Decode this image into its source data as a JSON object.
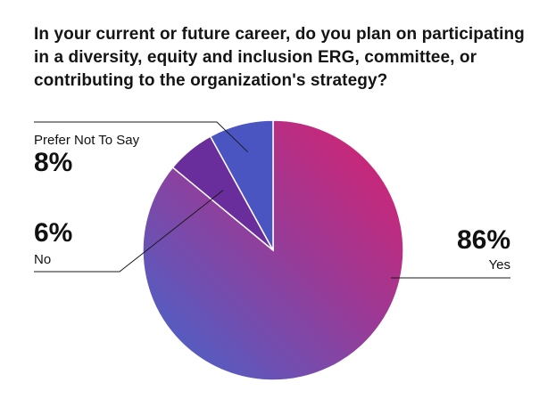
{
  "chart_data": {
    "type": "pie",
    "title": "In your current or future career, do you plan on participating in a diversity, equity and inclusion ERG, committee, or contributing to the organization's strategy?",
    "slices": [
      {
        "label": "Yes",
        "value": 86,
        "value_label": "86%",
        "color": "#c8287a"
      },
      {
        "label": "No",
        "value": 6,
        "value_label": "6%",
        "color": "#6a2d9c"
      },
      {
        "label": "Prefer Not To Say",
        "value": 8,
        "value_label": "8%",
        "color": "#4a55c2"
      }
    ]
  }
}
